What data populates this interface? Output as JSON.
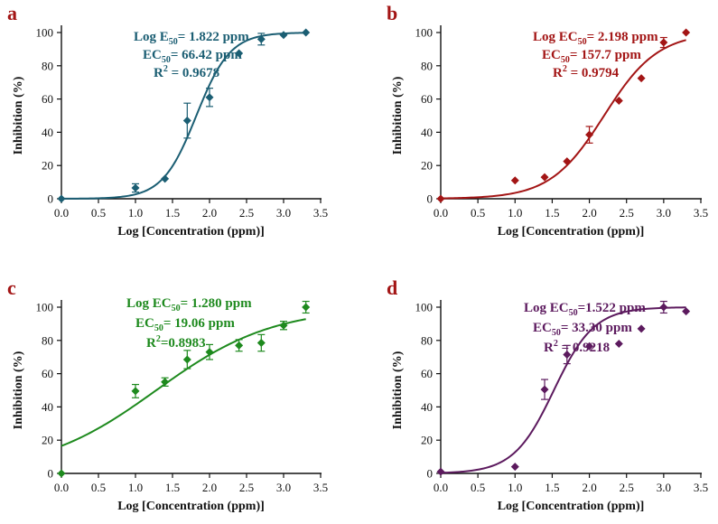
{
  "figure": {
    "description_visible": false
  },
  "chart_data": [
    {
      "panel": "a",
      "type": "scatter",
      "color": "#1b5e73",
      "marker": "diamond",
      "xlabel": "Log [Concentration (ppm)]",
      "ylabel": "Inhibition (%)",
      "xlim": [
        0,
        3.5
      ],
      "ylim": [
        0,
        100
      ],
      "xticks": [
        "0.0",
        "0.5",
        "1.0",
        "1.5",
        "2.0",
        "2.5",
        "3.0",
        "3.5"
      ],
      "yticks": [
        "0",
        "20",
        "40",
        "60",
        "80",
        "100"
      ],
      "annotations": [
        {
          "prefix": "Log E",
          "sub": "50",
          "sup": "",
          "suffix": "= 1.822 ppm"
        },
        {
          "prefix": "EC",
          "sub": "50",
          "sup": "",
          "suffix": "= 66.42 ppm"
        },
        {
          "prefix": "R",
          "sub": "",
          "sup": "2",
          "suffix": " = 0.9678"
        }
      ],
      "points": [
        {
          "x": 0.0,
          "y": 0,
          "err": 0
        },
        {
          "x": 1.0,
          "y": 6.5,
          "err": 2.5
        },
        {
          "x": 1.398,
          "y": 12,
          "err": 0
        },
        {
          "x": 1.699,
          "y": 47,
          "err": 10.5
        },
        {
          "x": 2.0,
          "y": 61,
          "err": 5.5
        },
        {
          "x": 2.398,
          "y": 87.5,
          "err": 0
        },
        {
          "x": 2.699,
          "y": 96,
          "err": 3.5
        },
        {
          "x": 3.0,
          "y": 98.5,
          "err": 0
        },
        {
          "x": 3.301,
          "y": 100,
          "err": 0
        }
      ],
      "fit": {
        "model": "four_parameter_logistic",
        "bottom": 0,
        "top": 100,
        "log_ec50": 1.822,
        "hill": 1.9
      }
    },
    {
      "panel": "b",
      "type": "scatter",
      "color": "#a31515",
      "marker": "diamond",
      "xlabel": "Log [Concentration (ppm)]",
      "ylabel": "Inhibition (%)",
      "xlim": [
        0,
        3.5
      ],
      "ylim": [
        0,
        100
      ],
      "xticks": [
        "0.0",
        "0.5",
        "1.0",
        "1.5",
        "2.0",
        "2.5",
        "3.0",
        "3.5"
      ],
      "yticks": [
        "0",
        "20",
        "40",
        "60",
        "80",
        "100"
      ],
      "annotations": [
        {
          "prefix": "Log EC",
          "sub": "50",
          "sup": "",
          "suffix": "= 2.198 ppm"
        },
        {
          "prefix": "EC",
          "sub": "50",
          "sup": "",
          "suffix": "= 157.7 ppm"
        },
        {
          "prefix": "R",
          "sub": "",
          "sup": "2",
          "suffix": " = 0.9794"
        }
      ],
      "points": [
        {
          "x": 0.0,
          "y": 0,
          "err": 0
        },
        {
          "x": 1.0,
          "y": 11,
          "err": 0
        },
        {
          "x": 1.398,
          "y": 13,
          "err": 0
        },
        {
          "x": 1.699,
          "y": 22.5,
          "err": 0
        },
        {
          "x": 2.0,
          "y": 38.5,
          "err": 5
        },
        {
          "x": 2.398,
          "y": 59,
          "err": 0
        },
        {
          "x": 2.699,
          "y": 72.5,
          "err": 0
        },
        {
          "x": 3.0,
          "y": 94,
          "err": 3
        },
        {
          "x": 3.301,
          "y": 100,
          "err": 0
        }
      ],
      "fit": {
        "model": "four_parameter_logistic",
        "bottom": 0,
        "top": 100,
        "log_ec50": 2.198,
        "hill": 1.2
      }
    },
    {
      "panel": "c",
      "type": "scatter",
      "color": "#1e8a1e",
      "marker": "diamond",
      "xlabel": "Log [Concentration (ppm)]",
      "ylabel": "Inhibition (%)",
      "xlim": [
        0,
        3.5
      ],
      "ylim": [
        0,
        100
      ],
      "xticks": [
        "0.0",
        "0.5",
        "1.0",
        "1.5",
        "2.0",
        "2.5",
        "3.0",
        "3.5"
      ],
      "yticks": [
        "0",
        "20",
        "40",
        "60",
        "80",
        "100"
      ],
      "annotations": [
        {
          "prefix": "Log EC",
          "sub": "50",
          "sup": "",
          "suffix": "= 1.280 ppm"
        },
        {
          "prefix": "EC",
          "sub": "50",
          "sup": "",
          "suffix": "= 19.06 ppm"
        },
        {
          "prefix": "R",
          "sub": "",
          "sup": "2",
          "suffix": "=0.8983"
        }
      ],
      "points": [
        {
          "x": 0.0,
          "y": 0,
          "err": 0
        },
        {
          "x": 1.0,
          "y": 49.5,
          "err": 4
        },
        {
          "x": 1.398,
          "y": 55,
          "err": 2.5
        },
        {
          "x": 1.699,
          "y": 68.5,
          "err": 5.5
        },
        {
          "x": 2.0,
          "y": 73,
          "err": 4.5
        },
        {
          "x": 2.398,
          "y": 77,
          "err": 3.5
        },
        {
          "x": 2.699,
          "y": 78.5,
          "err": 5
        },
        {
          "x": 3.0,
          "y": 89,
          "err": 2.5
        },
        {
          "x": 3.301,
          "y": 100,
          "err": 3.5
        }
      ],
      "fit": {
        "model": "four_parameter_logistic",
        "bottom": 0,
        "top": 100,
        "log_ec50": 1.28,
        "hill": 0.55
      }
    },
    {
      "panel": "d",
      "type": "scatter",
      "color": "#5c1a5e",
      "marker": "diamond",
      "xlabel": "Log [Concentration (ppm)]",
      "ylabel": "Inhibition (%)",
      "xlim": [
        0,
        3.5
      ],
      "ylim": [
        0,
        100
      ],
      "xticks": [
        "0.0",
        "0.5",
        "1.0",
        "1.5",
        "2.0",
        "2.5",
        "3.0",
        "3.5"
      ],
      "yticks": [
        "0",
        "20",
        "40",
        "60",
        "80",
        "100"
      ],
      "annotations": [
        {
          "prefix": "Log EC",
          "sub": "50",
          "sup": "",
          "suffix": "=1.522 ppm"
        },
        {
          "prefix": "EC",
          "sub": "50",
          "sup": "",
          "suffix": "= 33.30 ppm"
        },
        {
          "prefix": "R",
          "sub": "",
          "sup": "2",
          "suffix": " = 0.9218"
        }
      ],
      "points": [
        {
          "x": 0.0,
          "y": 1,
          "err": 0
        },
        {
          "x": 1.0,
          "y": 4,
          "err": 0
        },
        {
          "x": 1.398,
          "y": 50.5,
          "err": 6
        },
        {
          "x": 1.699,
          "y": 71.5,
          "err": 5.5
        },
        {
          "x": 2.0,
          "y": 76.5,
          "err": 0
        },
        {
          "x": 2.398,
          "y": 78,
          "err": 0
        },
        {
          "x": 2.699,
          "y": 87,
          "err": 0
        },
        {
          "x": 3.0,
          "y": 100,
          "err": 3.5
        },
        {
          "x": 3.301,
          "y": 97.5,
          "err": 0
        }
      ],
      "fit": {
        "model": "four_parameter_logistic",
        "bottom": 0,
        "top": 100,
        "log_ec50": 1.522,
        "hill": 1.6
      }
    }
  ]
}
